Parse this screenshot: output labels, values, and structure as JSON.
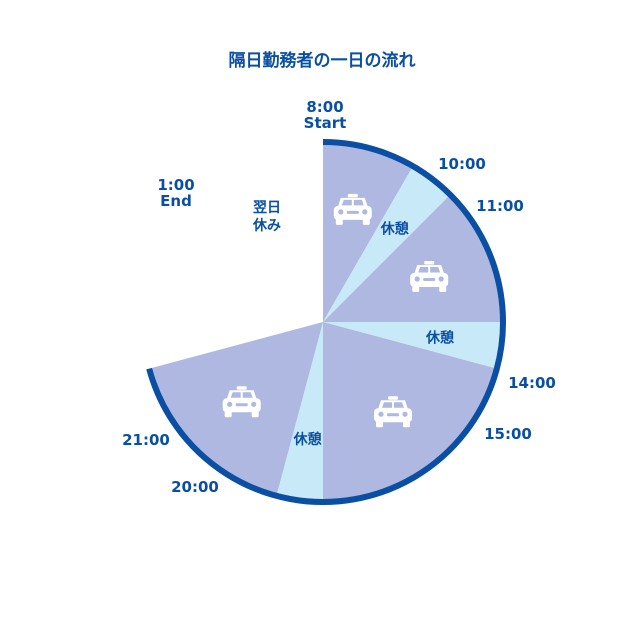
{
  "title": "隔日勤務者の一日の流れ",
  "colors": {
    "work": "#aeb8e0",
    "break": "#c8eaf8",
    "ring": "#0a4fa3",
    "text": "#0a4fa3",
    "icon": "#ffffff"
  },
  "day_start_hour": 8,
  "segments": [
    {
      "type": "work",
      "from": 8,
      "to": 10,
      "icon": "taxi-icon"
    },
    {
      "type": "break",
      "from": 10,
      "to": 11,
      "label": "休憩"
    },
    {
      "type": "work",
      "from": 11,
      "to": 14,
      "icon": "taxi-icon"
    },
    {
      "type": "break",
      "from": 14,
      "to": 15,
      "label": "休憩"
    },
    {
      "type": "work",
      "from": 15,
      "to": 20,
      "icon": "taxi-icon"
    },
    {
      "type": "break",
      "from": 20,
      "to": 21,
      "label": "休憩"
    },
    {
      "type": "work",
      "from": 21,
      "to": 25,
      "icon": "taxi-icon"
    },
    {
      "type": "off",
      "from": 25,
      "to": 32,
      "label": [
        "翌日",
        "休み"
      ]
    }
  ],
  "time_labels": [
    {
      "hour": 8,
      "lines": [
        "8:00",
        "Start"
      ]
    },
    {
      "hour": 10,
      "lines": [
        "10:00"
      ]
    },
    {
      "hour": 11,
      "lines": [
        "11:00"
      ]
    },
    {
      "hour": 14,
      "lines": [
        "14:00"
      ]
    },
    {
      "hour": 15,
      "lines": [
        "15:00"
      ]
    },
    {
      "hour": 20,
      "lines": [
        "20:00"
      ]
    },
    {
      "hour": 21,
      "lines": [
        "21:00"
      ]
    },
    {
      "hour": 25,
      "lines": [
        "1:00",
        "End"
      ]
    }
  ]
}
